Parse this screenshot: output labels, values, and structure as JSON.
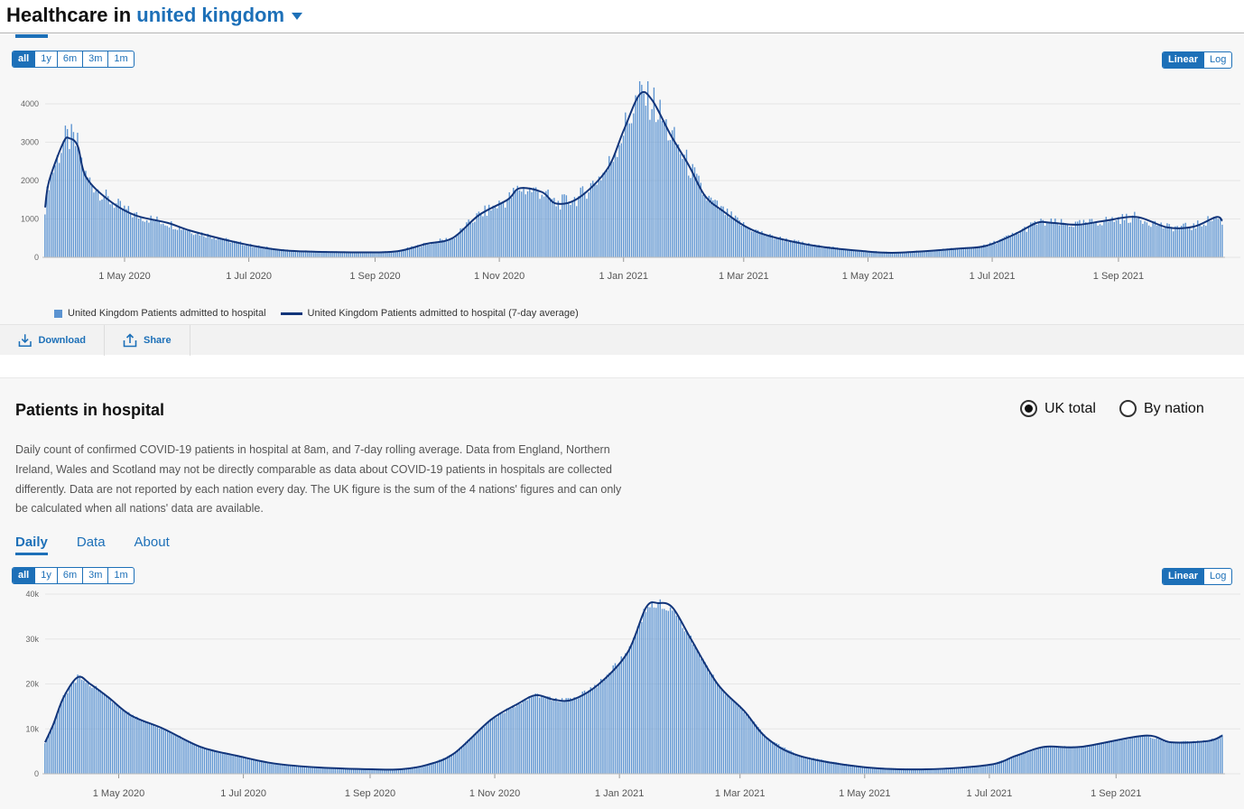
{
  "header": {
    "prefix": "Healthcare in",
    "location": "united kingdom"
  },
  "range_buttons": [
    "all",
    "1y",
    "6m",
    "3m",
    "1m"
  ],
  "scale_buttons": [
    "Linear",
    "Log"
  ],
  "colors": {
    "accent": "#1d70b8",
    "bar": "#5b93d1",
    "line": "#12357a"
  },
  "card1": {
    "legend": {
      "bars": "United Kingdom Patients admitted to hospital",
      "line": "United Kingdom Patients admitted to hospital (7-day average)"
    },
    "download": "Download",
    "share": "Share"
  },
  "card2": {
    "title": "Patients in hospital",
    "radios": [
      "UK total",
      "By nation"
    ],
    "description": "Daily count of confirmed COVID-19 patients in hospital at 8am, and 7-day rolling average. Data from England, Northern Ireland, Wales and Scotland may not be directly comparable as data about COVID-19 patients in hospitals are collected differently. Data are not reported by each nation every day. The UK figure is the sum of the 4 nations' figures and can only be calculated when all nations' data are available.",
    "tabs": [
      "Daily",
      "Data",
      "About"
    ]
  },
  "chart_data": [
    {
      "type": "bar",
      "title": "Patients admitted to hospital",
      "x_unit": "days since 23 Mar 2020",
      "x_range": [
        0,
        578
      ],
      "ylim": [
        0,
        4000
      ],
      "yticks": [
        {
          "v": 0,
          "label": "0"
        },
        {
          "v": 1000,
          "label": "1000"
        },
        {
          "v": 2000,
          "label": "2000"
        },
        {
          "v": 3000,
          "label": "3000"
        },
        {
          "v": 4000,
          "label": "4000"
        }
      ],
      "xticks": [
        {
          "d": 39,
          "label": "1 May 2020"
        },
        {
          "d": 100,
          "label": "1 Jul 2020"
        },
        {
          "d": 162,
          "label": "1 Sep 2020"
        },
        {
          "d": 223,
          "label": "1 Nov 2020"
        },
        {
          "d": 284,
          "label": "1 Jan 2021"
        },
        {
          "d": 343,
          "label": "1 Mar 2021"
        },
        {
          "d": 404,
          "label": "1 May 2021"
        },
        {
          "d": 465,
          "label": "1 Jul 2021"
        },
        {
          "d": 527,
          "label": "1 Sep 2021"
        }
      ],
      "avg_7day": [
        [
          0,
          1300
        ],
        [
          2,
          2000
        ],
        [
          9,
          3000
        ],
        [
          12,
          3100
        ],
        [
          16,
          2900
        ],
        [
          20,
          2100
        ],
        [
          31,
          1500
        ],
        [
          44,
          1100
        ],
        [
          60,
          900
        ],
        [
          71,
          700
        ],
        [
          89,
          450
        ],
        [
          102,
          300
        ],
        [
          120,
          170
        ],
        [
          155,
          130
        ],
        [
          173,
          160
        ],
        [
          187,
          350
        ],
        [
          200,
          500
        ],
        [
          213,
          1100
        ],
        [
          227,
          1500
        ],
        [
          233,
          1800
        ],
        [
          244,
          1700
        ],
        [
          251,
          1400
        ],
        [
          262,
          1550
        ],
        [
          276,
          2300
        ],
        [
          284,
          3300
        ],
        [
          292,
          4250
        ],
        [
          298,
          4100
        ],
        [
          307,
          3200
        ],
        [
          316,
          2400
        ],
        [
          324,
          1600
        ],
        [
          333,
          1200
        ],
        [
          344,
          800
        ],
        [
          356,
          550
        ],
        [
          378,
          300
        ],
        [
          400,
          170
        ],
        [
          418,
          120
        ],
        [
          449,
          230
        ],
        [
          462,
          300
        ],
        [
          476,
          600
        ],
        [
          487,
          900
        ],
        [
          494,
          900
        ],
        [
          507,
          850
        ],
        [
          520,
          950
        ],
        [
          536,
          1050
        ],
        [
          551,
          780
        ],
        [
          564,
          800
        ],
        [
          575,
          1050
        ],
        [
          578,
          950
        ]
      ]
    },
    {
      "type": "bar",
      "title": "Patients in hospital",
      "x_unit": "days since 23 Mar 2020",
      "x_range": [
        3,
        579
      ],
      "ylim": [
        0,
        40000
      ],
      "yticks": [
        {
          "v": 0,
          "label": "0"
        },
        {
          "v": 10000,
          "label": "10k"
        },
        {
          "v": 20000,
          "label": "20k"
        },
        {
          "v": 30000,
          "label": "30k"
        },
        {
          "v": 40000,
          "label": "40k"
        }
      ],
      "xticks": [
        {
          "d": 39,
          "label": "1 May 2020"
        },
        {
          "d": 100,
          "label": "1 Jul 2020"
        },
        {
          "d": 162,
          "label": "1 Sep 2020"
        },
        {
          "d": 223,
          "label": "1 Nov 2020"
        },
        {
          "d": 284,
          "label": "1 Jan 2021"
        },
        {
          "d": 343,
          "label": "1 Mar 2021"
        },
        {
          "d": 404,
          "label": "1 May 2021"
        },
        {
          "d": 465,
          "label": "1 Jul 2021"
        },
        {
          "d": 527,
          "label": "1 Sep 2021"
        }
      ],
      "avg_7day": [
        [
          3,
          7000
        ],
        [
          7,
          11000
        ],
        [
          12,
          17000
        ],
        [
          19,
          21500
        ],
        [
          25,
          20000
        ],
        [
          34,
          17000
        ],
        [
          45,
          13000
        ],
        [
          61,
          10000
        ],
        [
          79,
          6000
        ],
        [
          97,
          4000
        ],
        [
          115,
          2300
        ],
        [
          137,
          1400
        ],
        [
          163,
          1000
        ],
        [
          177,
          1000
        ],
        [
          190,
          2000
        ],
        [
          203,
          4500
        ],
        [
          221,
          12000
        ],
        [
          234,
          15500
        ],
        [
          243,
          17500
        ],
        [
          252,
          16500
        ],
        [
          261,
          16500
        ],
        [
          274,
          20000
        ],
        [
          288,
          27000
        ],
        [
          297,
          37000
        ],
        [
          303,
          38000
        ],
        [
          310,
          37000
        ],
        [
          319,
          30000
        ],
        [
          332,
          20000
        ],
        [
          345,
          14000
        ],
        [
          356,
          8000
        ],
        [
          372,
          4000
        ],
        [
          403,
          1500
        ],
        [
          434,
          1000
        ],
        [
          465,
          2000
        ],
        [
          478,
          4000
        ],
        [
          492,
          6000
        ],
        [
          510,
          6000
        ],
        [
          541,
          8500
        ],
        [
          554,
          7000
        ],
        [
          572,
          7300
        ],
        [
          579,
          8500
        ]
      ]
    }
  ]
}
